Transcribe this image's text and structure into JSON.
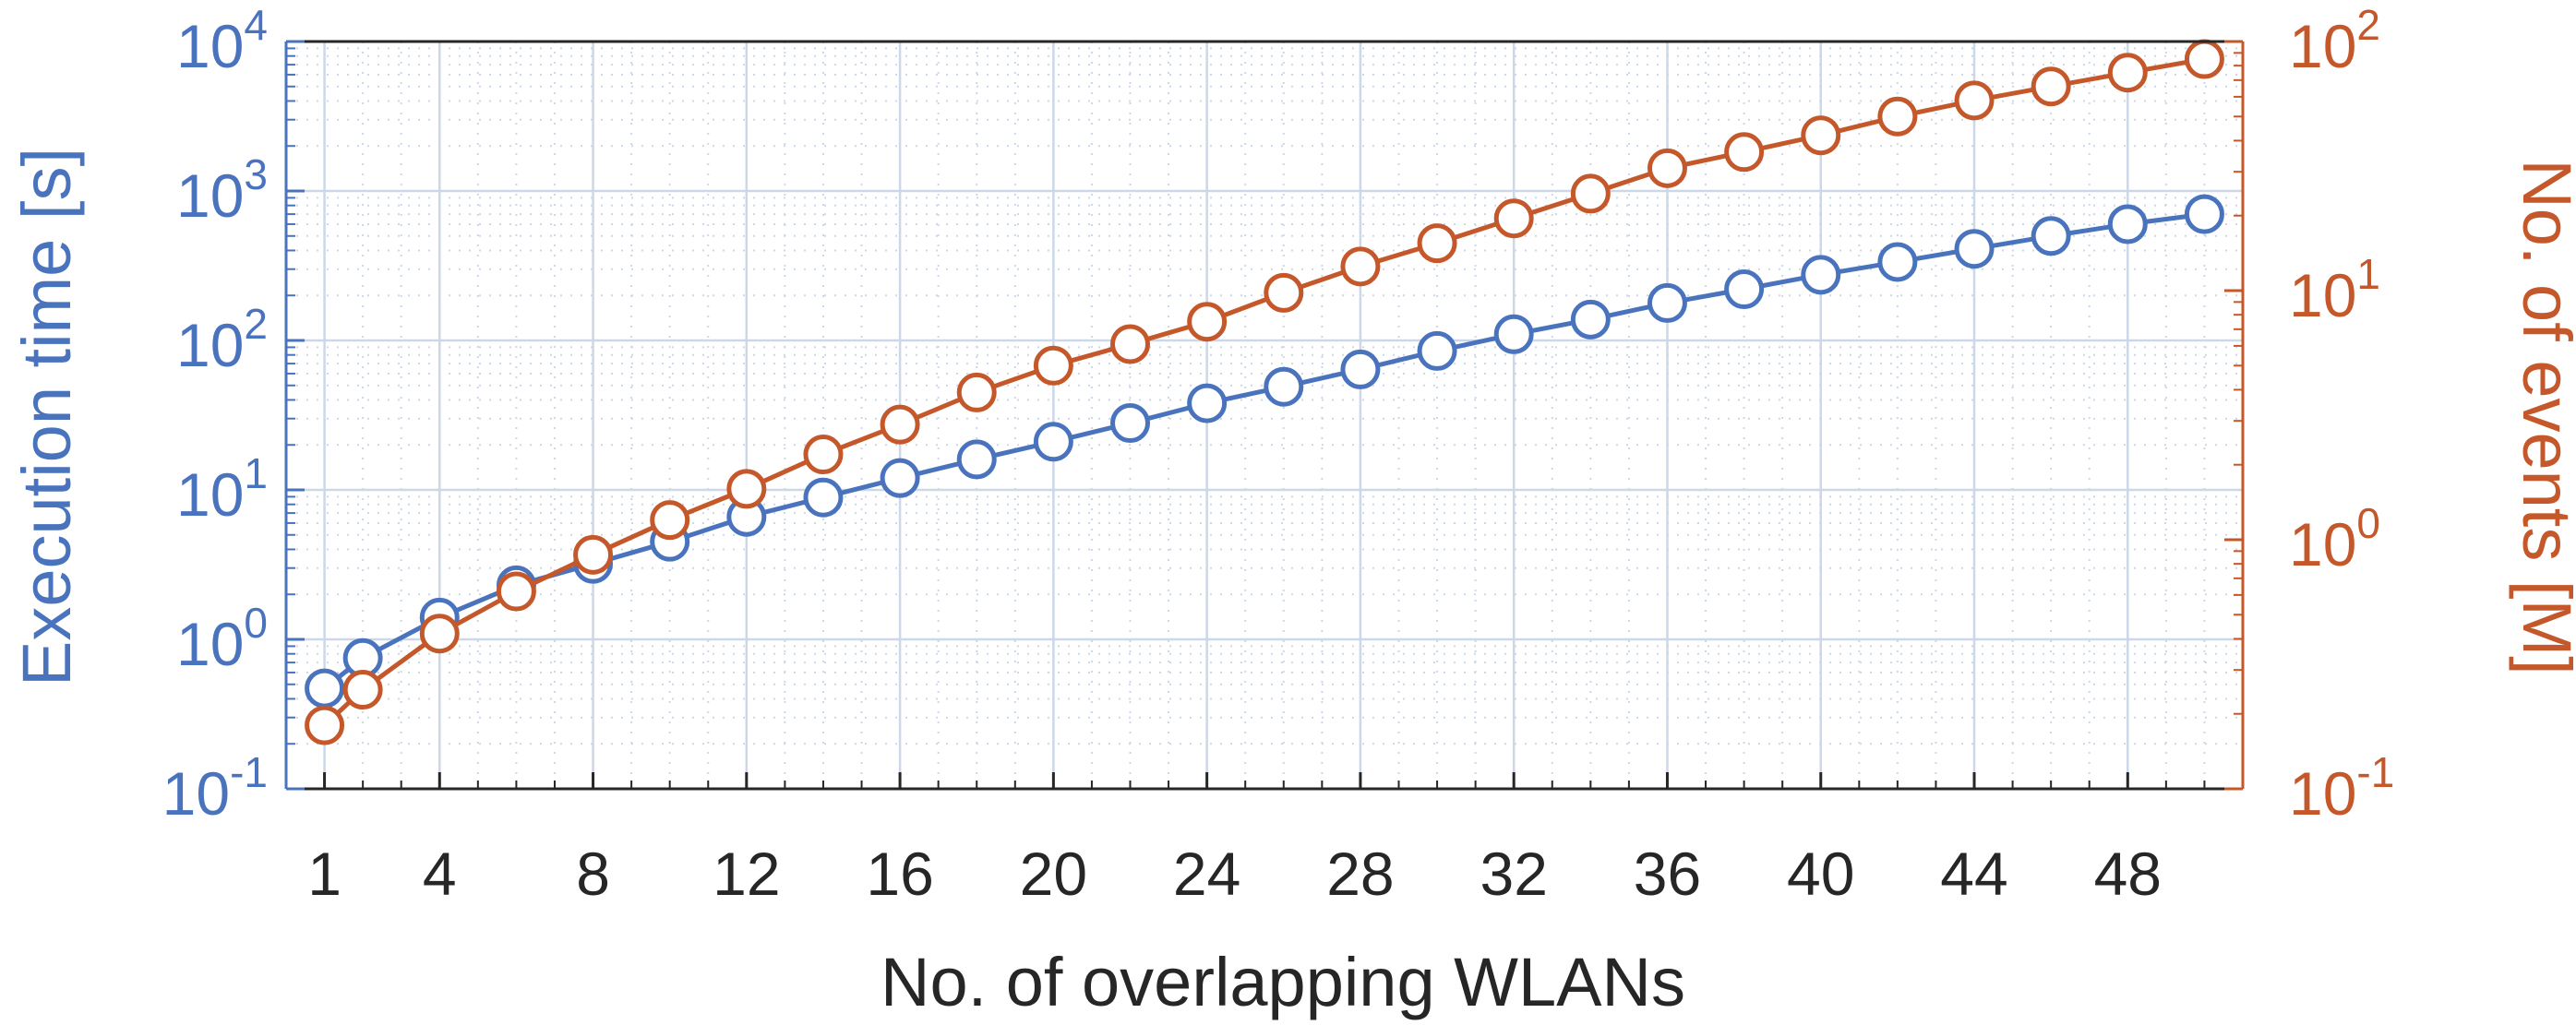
{
  "chart_data": {
    "type": "line",
    "xlabel": "No. of overlapping WLANs",
    "ylabel_left": "Execution time [s]",
    "ylabel_right": "No. of events [M]",
    "x_ticks": [
      1,
      4,
      8,
      12,
      16,
      20,
      24,
      28,
      32,
      36,
      40,
      44,
      48
    ],
    "xlim": [
      0,
      51
    ],
    "left_axis": {
      "scale": "log",
      "ylim": [
        0.1,
        10000
      ],
      "ticks": [
        {
          "base": "10",
          "exp": "-1"
        },
        {
          "base": "10",
          "exp": "0"
        },
        {
          "base": "10",
          "exp": "1"
        },
        {
          "base": "10",
          "exp": "2"
        },
        {
          "base": "10",
          "exp": "3"
        },
        {
          "base": "10",
          "exp": "4"
        }
      ]
    },
    "right_axis": {
      "scale": "log",
      "ylim": [
        0.1,
        100
      ],
      "ticks": [
        {
          "base": "10",
          "exp": "-1"
        },
        {
          "base": "10",
          "exp": "0"
        },
        {
          "base": "10",
          "exp": "1"
        },
        {
          "base": "10",
          "exp": "2"
        }
      ]
    },
    "grid": true,
    "colors": {
      "left": "#4a73be",
      "right": "#c5582a",
      "grid": "#ccd7e8",
      "text": "#262626"
    },
    "series": [
      {
        "axis": "left",
        "color": "#4a73be",
        "x": [
          1,
          2,
          4,
          6,
          8,
          10,
          12,
          14,
          16,
          18,
          20,
          22,
          24,
          26,
          28,
          30,
          32,
          34,
          36,
          38,
          40,
          42,
          44,
          46,
          48,
          50
        ],
        "y": [
          0.47,
          0.75,
          1.4,
          2.3,
          3.2,
          4.5,
          6.6,
          8.9,
          12,
          16,
          21,
          28,
          38,
          49,
          64,
          85,
          110,
          138,
          178,
          220,
          275,
          335,
          410,
          500,
          600,
          700
        ]
      },
      {
        "axis": "right",
        "color": "#c5582a",
        "x": [
          1,
          2,
          4,
          6,
          8,
          10,
          12,
          14,
          16,
          18,
          20,
          22,
          24,
          26,
          28,
          30,
          32,
          34,
          36,
          38,
          40,
          42,
          44,
          46,
          48,
          50
        ],
        "y": [
          0.18,
          0.25,
          0.42,
          0.62,
          0.87,
          1.2,
          1.6,
          2.2,
          2.9,
          3.9,
          5.0,
          6.1,
          7.5,
          9.8,
          12.5,
          15.5,
          19.5,
          24.5,
          31,
          36,
          42,
          50,
          58,
          66,
          75,
          85
        ]
      }
    ]
  }
}
